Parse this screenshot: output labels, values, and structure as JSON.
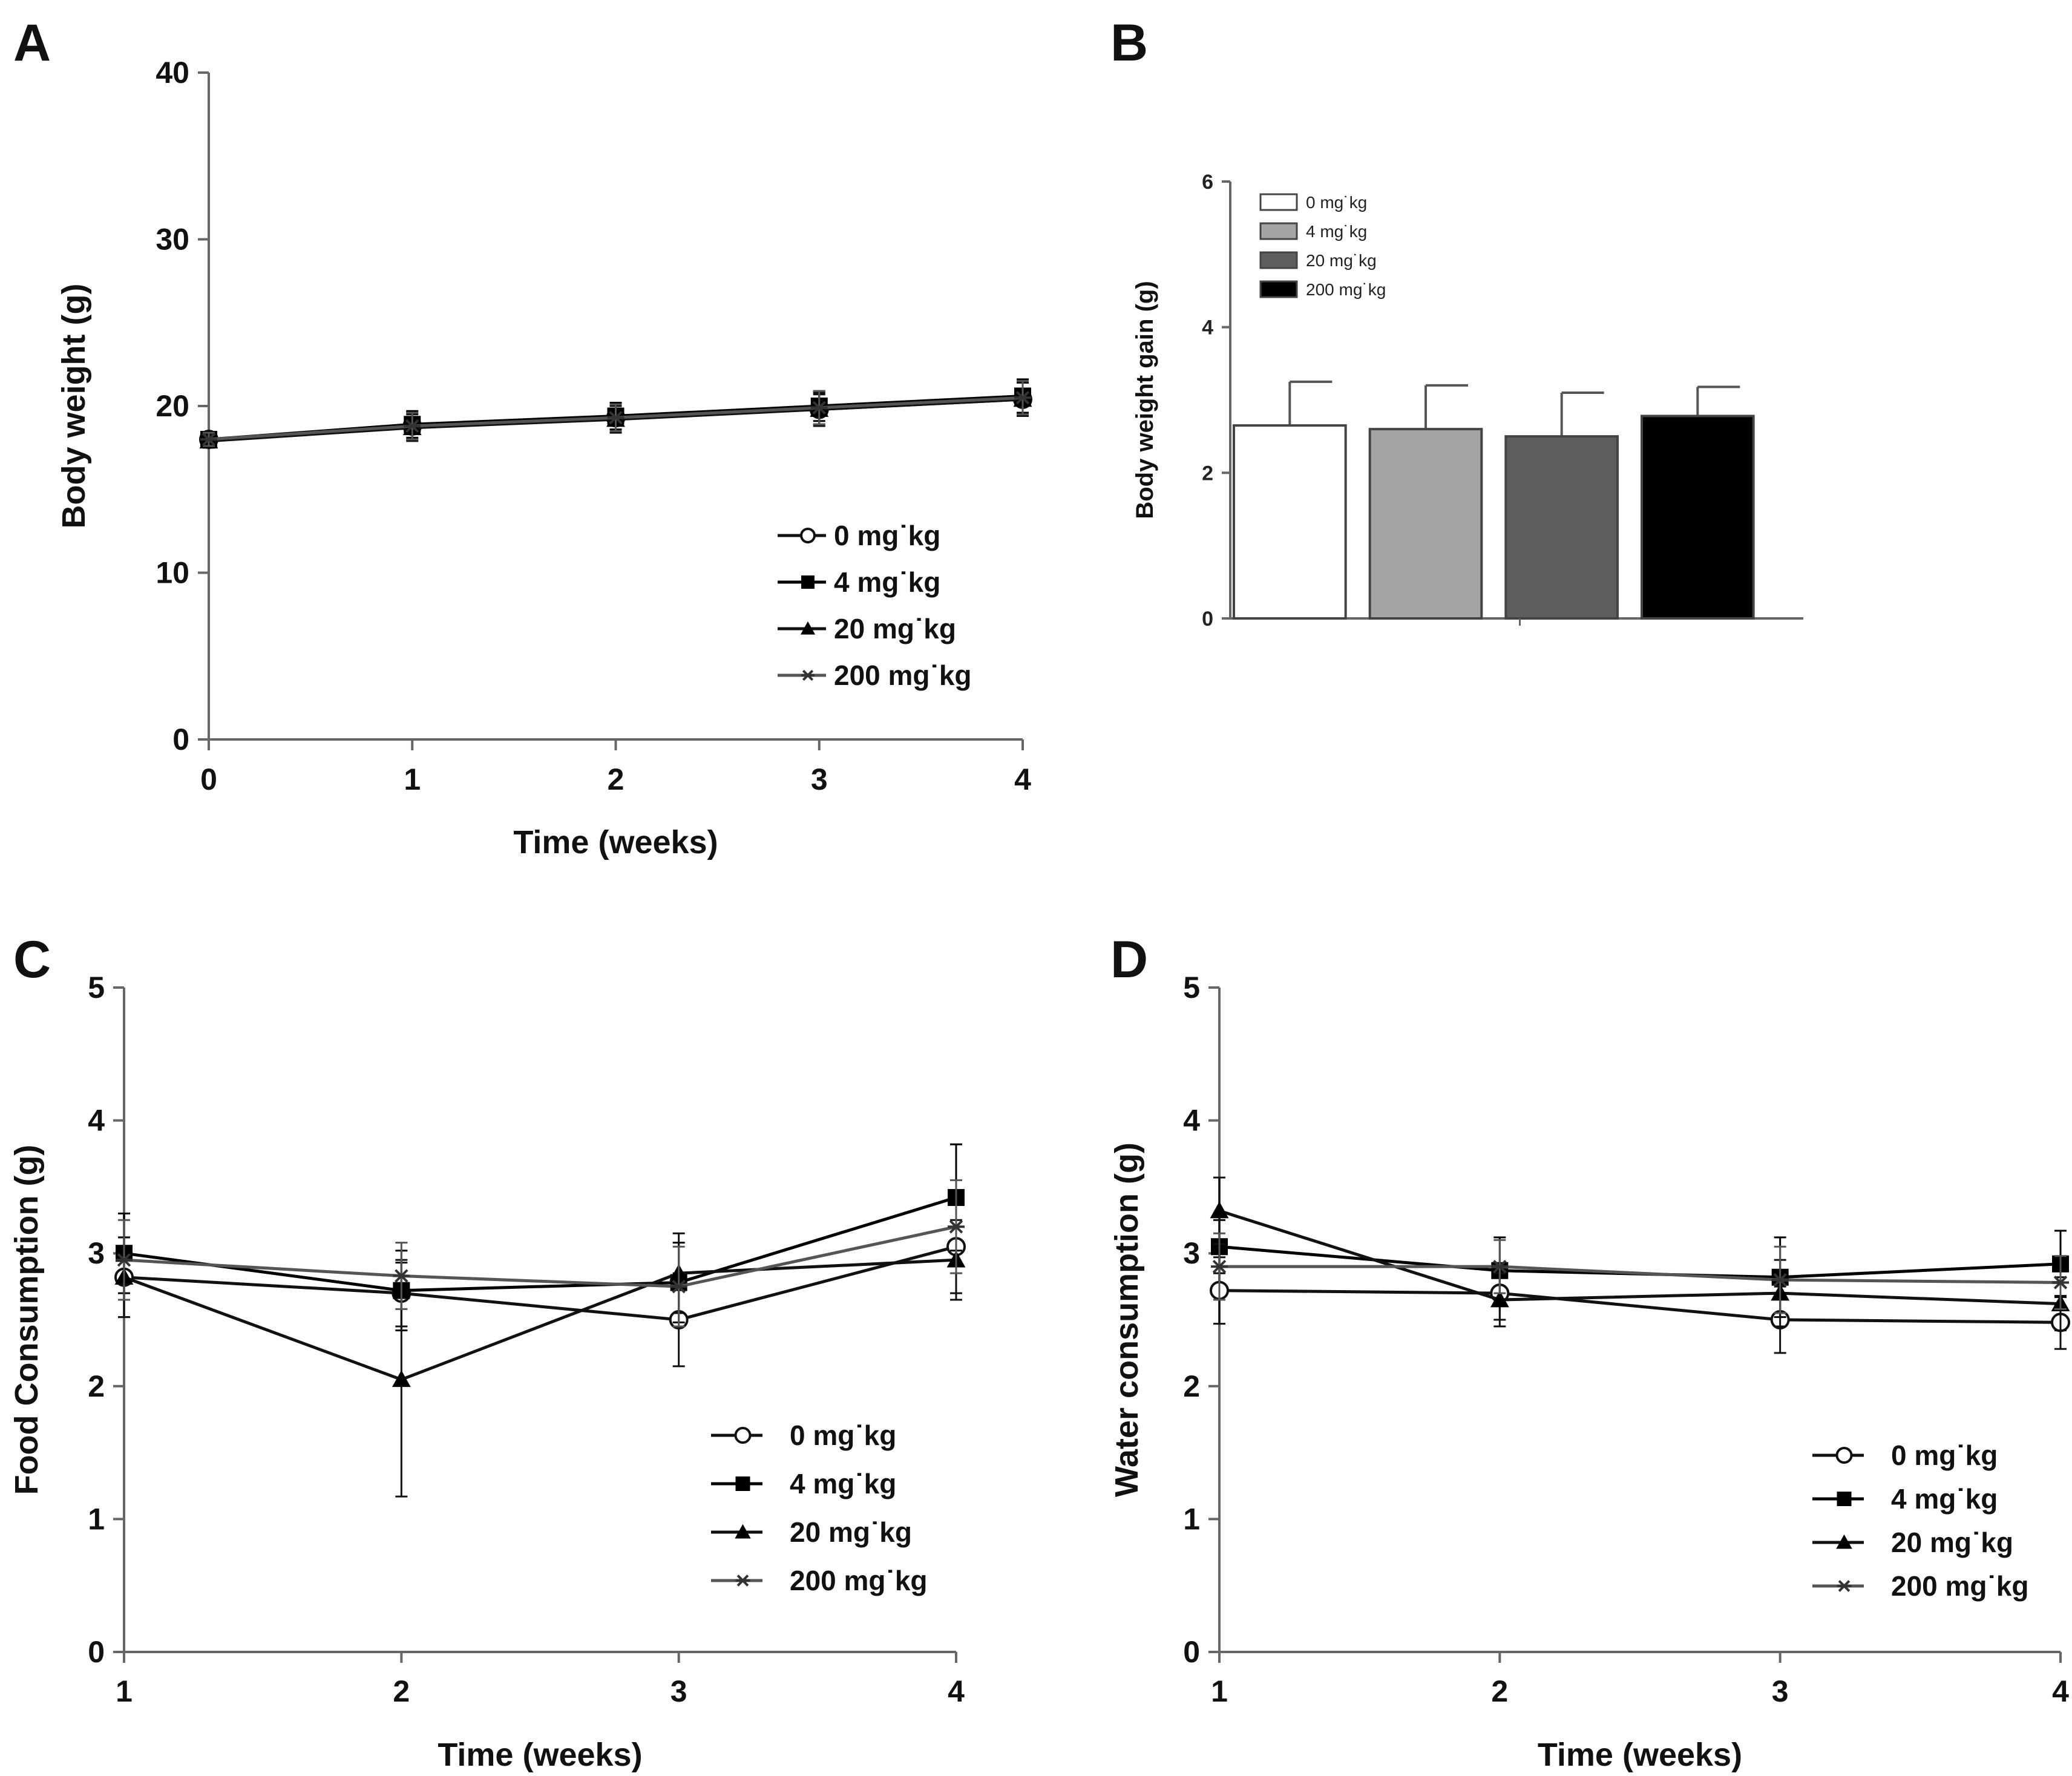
{
  "chart_data": [
    {
      "panel": "A",
      "type": "line",
      "title": "",
      "xlabel": "Time (weeks)",
      "ylabel": "Body weight (g)",
      "x": [
        0,
        1,
        2,
        3,
        4
      ],
      "xticks": [
        "0",
        "1",
        "2",
        "3",
        "4"
      ],
      "xlim": [
        0,
        4
      ],
      "yticks": [
        "0",
        "10",
        "20",
        "30",
        "40"
      ],
      "ylim": [
        0,
        40
      ],
      "grid": false,
      "legend_position": "lower-right",
      "series": [
        {
          "name": "0 mg/kg",
          "legend": "0 mg˙kg",
          "marker": "circle-open",
          "values": [
            18.0,
            18.8,
            19.3,
            19.8,
            20.4
          ],
          "err": [
            0.4,
            0.8,
            0.8,
            1.0,
            1.0
          ]
        },
        {
          "name": "4 mg/kg",
          "legend": "4 mg˙kg",
          "marker": "square",
          "values": [
            18.0,
            18.9,
            19.4,
            20.0,
            20.6
          ],
          "err": [
            0.4,
            0.8,
            0.8,
            0.9,
            1.0
          ]
        },
        {
          "name": "20 mg/kg",
          "legend": "20 mg˙kg",
          "marker": "triangle",
          "values": [
            17.9,
            18.7,
            19.2,
            19.8,
            20.4
          ],
          "err": [
            0.4,
            0.8,
            0.8,
            0.9,
            1.0
          ]
        },
        {
          "name": "200 mg/kg",
          "legend": "200 mg˙kg",
          "marker": "star",
          "values": [
            18.0,
            18.8,
            19.3,
            19.9,
            20.5
          ],
          "err": [
            0.4,
            0.8,
            0.8,
            1.0,
            1.0
          ]
        }
      ]
    },
    {
      "panel": "B",
      "type": "bar",
      "title": "",
      "xlabel": "",
      "ylabel": "Body weight gain (g)",
      "categories": [
        "0 mg˙kg",
        "4 mg˙kg",
        "20 mg˙kg",
        "200 mg˙kg"
      ],
      "values": [
        2.65,
        2.6,
        2.5,
        2.78
      ],
      "err": [
        0.6,
        0.6,
        0.6,
        0.4
      ],
      "colors": [
        "#ffffff",
        "#a5a5a5",
        "#5e5e5e",
        "#000000"
      ],
      "yticks": [
        "0",
        "2",
        "4",
        "6"
      ],
      "ylim": [
        0,
        6
      ],
      "grid": false,
      "legend_position": "top-left"
    },
    {
      "panel": "C",
      "type": "line",
      "title": "",
      "xlabel": "Time (weeks)",
      "ylabel": "Food Consumption (g)",
      "x": [
        1,
        2,
        3,
        4
      ],
      "xticks": [
        "1",
        "2",
        "3",
        "4"
      ],
      "xlim": [
        1,
        4
      ],
      "yticks": [
        "0",
        "1",
        "2",
        "3",
        "4",
        "5"
      ],
      "ylim": [
        0,
        5
      ],
      "grid": false,
      "legend_position": "lower-right",
      "series": [
        {
          "name": "0 mg/kg",
          "legend": "0 mg˙kg",
          "marker": "circle-open",
          "values": [
            2.82,
            2.7,
            2.5,
            3.05
          ],
          "err": [
            0.3,
            0.25,
            0.35,
            0.35
          ]
        },
        {
          "name": "4 mg/kg",
          "legend": "4 mg˙kg",
          "marker": "square",
          "values": [
            3.0,
            2.72,
            2.78,
            3.42
          ],
          "err": [
            0.3,
            0.3,
            0.3,
            0.4
          ]
        },
        {
          "name": "20 mg/kg",
          "legend": "20 mg˙kg",
          "marker": "triangle",
          "values": [
            2.82,
            2.05,
            2.85,
            2.95
          ],
          "err": [
            0.3,
            0.88,
            0.3,
            0.3
          ]
        },
        {
          "name": "200 mg/kg",
          "legend": "200 mg˙kg",
          "marker": "star",
          "values": [
            2.95,
            2.83,
            2.75,
            3.2
          ],
          "err": [
            0.3,
            0.25,
            0.3,
            0.35
          ]
        }
      ]
    },
    {
      "panel": "D",
      "type": "line",
      "title": "",
      "xlabel": "Time (weeks)",
      "ylabel": "Water consumption (g)",
      "x": [
        1,
        2,
        3,
        4
      ],
      "xticks": [
        "1",
        "2",
        "3",
        "4"
      ],
      "xlim": [
        1,
        4
      ],
      "yticks": [
        "0",
        "1",
        "2",
        "3",
        "4",
        "5"
      ],
      "ylim": [
        0,
        5
      ],
      "grid": false,
      "legend_position": "lower-right",
      "series": [
        {
          "name": "0 mg/kg",
          "legend": "0 mg˙kg",
          "marker": "circle-open",
          "values": [
            2.72,
            2.7,
            2.5,
            2.48
          ],
          "err": [
            0.25,
            0.2,
            0.25,
            0.2
          ]
        },
        {
          "name": "4 mg/kg",
          "legend": "4 mg˙kg",
          "marker": "square",
          "values": [
            3.05,
            2.87,
            2.82,
            2.92
          ],
          "err": [
            0.2,
            0.25,
            0.3,
            0.25
          ]
        },
        {
          "name": "20 mg/kg",
          "legend": "20 mg˙kg",
          "marker": "triangle",
          "values": [
            3.32,
            2.65,
            2.7,
            2.62
          ],
          "err": [
            0.25,
            0.2,
            0.25,
            0.2
          ]
        },
        {
          "name": "200 mg/kg",
          "legend": "200 mg˙kg",
          "marker": "star",
          "values": [
            2.9,
            2.9,
            2.8,
            2.78
          ],
          "err": [
            0.25,
            0.2,
            0.25,
            0.2
          ]
        }
      ]
    }
  ]
}
